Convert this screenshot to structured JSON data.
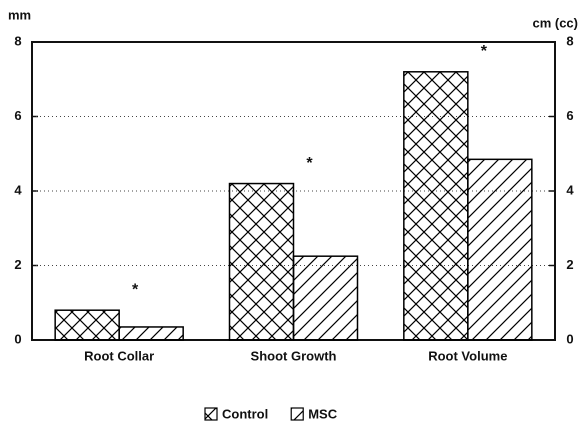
{
  "chart_data": {
    "type": "bar",
    "y_label": "mm",
    "y2_label": "cm (cc)",
    "categories": [
      "Root Collar",
      "Shoot Growth",
      "Root Volume"
    ],
    "series": [
      {
        "name": "Control",
        "color": "#000000",
        "pattern": "crosshatch",
        "values": [
          0.8,
          4.2,
          7.2
        ]
      },
      {
        "name": "MSC",
        "color": "#000000",
        "pattern": "diagonal",
        "values": [
          0.35,
          2.25,
          4.85
        ]
      }
    ],
    "annotations": [
      "*",
      "*",
      "*"
    ],
    "ylim": [
      0,
      8
    ],
    "yticks": [
      0,
      2,
      4,
      6,
      8
    ],
    "y2lim": [
      0,
      8
    ],
    "y2ticks": [
      0,
      2,
      4,
      6,
      8
    ],
    "grid": true,
    "legend": "bottom"
  }
}
